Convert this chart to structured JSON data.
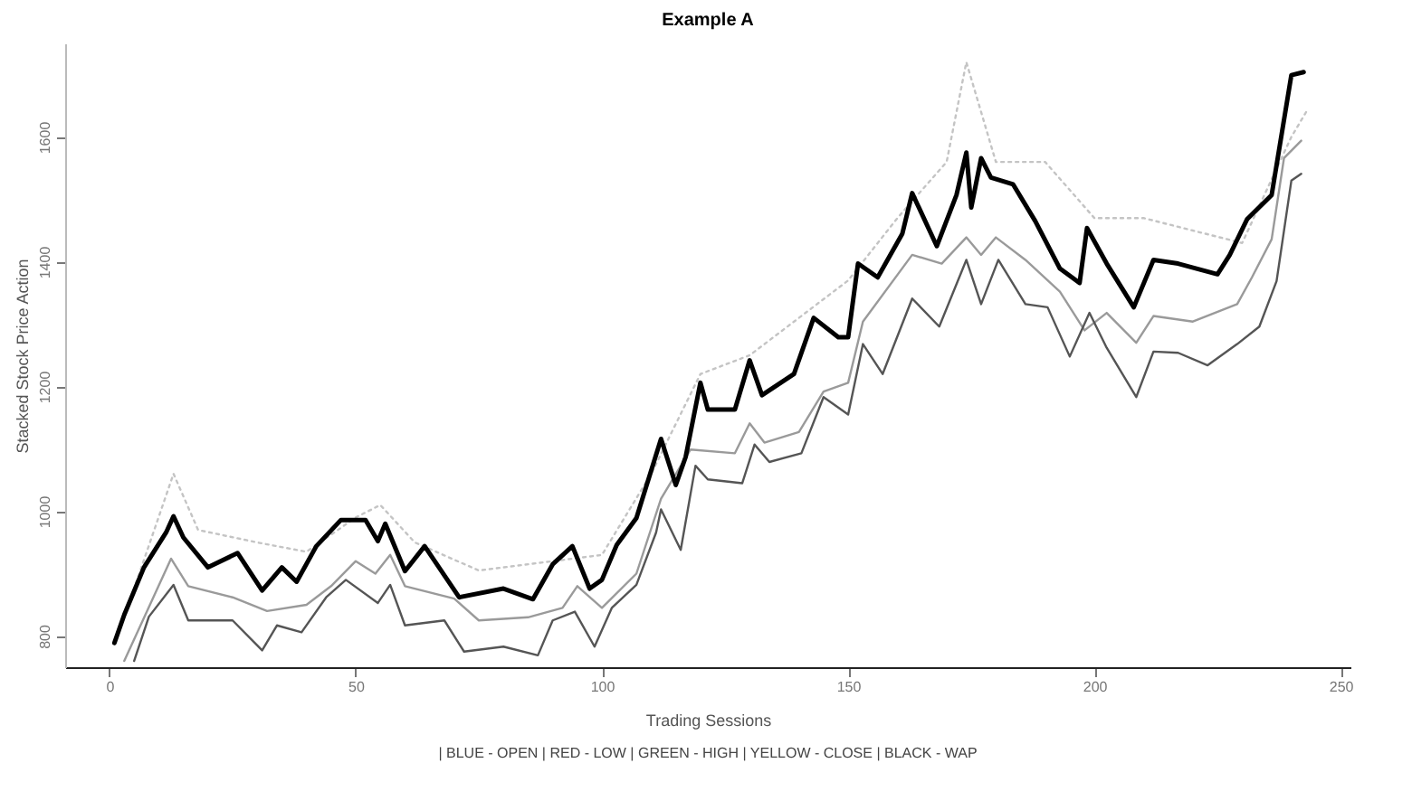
{
  "chart_data": {
    "type": "line",
    "title": "Example A",
    "xlabel": "Trading Sessions",
    "ylabel": "Stacked Stock Price Action",
    "annotations": [
      "| BLUE - OPEN | RED - LOW | GREEN - HIGH | YELLOW - CLOSE | BLACK - WAP"
    ],
    "xlim": [
      -9,
      252
    ],
    "ylim": [
      750,
      1750
    ],
    "xticks": [
      0,
      50,
      100,
      150,
      200,
      250
    ],
    "yticks": [
      800,
      1000,
      1200,
      1400,
      1600
    ],
    "grid": false,
    "series": [
      {
        "color": "#c4c4c4",
        "line_style": "dotted",
        "x": [
          3,
          13,
          18,
          30,
          40,
          50,
          55,
          62,
          75,
          90,
          100,
          110,
          120,
          130,
          140,
          150,
          160,
          170,
          174,
          180,
          190,
          200,
          210,
          220,
          230,
          240,
          243
        ],
        "values": [
          830,
          1060,
          970,
          950,
          935,
          990,
          1010,
          950,
          905,
          920,
          930,
          1060,
          1220,
          1250,
          1310,
          1370,
          1470,
          1560,
          1720,
          1560,
          1560,
          1470,
          1470,
          1450,
          1430,
          1600,
          1640
        ]
      },
      {
        "color": "#9a9a9a",
        "line_style": "solid",
        "x": [
          3,
          12.5,
          16,
          25,
          32,
          40,
          45,
          50,
          54,
          57,
          60,
          70,
          75,
          85,
          92,
          95,
          100,
          107,
          112,
          118,
          127,
          130,
          133,
          140,
          145,
          150,
          153,
          163,
          169,
          174,
          177,
          180,
          186,
          193,
          198,
          202.5,
          208.5,
          212,
          220,
          229,
          232,
          236,
          238.5,
          242
        ],
        "values": [
          760,
          924,
          880,
          862,
          840,
          850,
          880,
          920,
          900,
          930,
          880,
          860,
          825,
          830,
          845,
          880,
          845,
          900,
          1020,
          1099,
          1093,
          1141,
          1110,
          1127,
          1192,
          1206,
          1304,
          1411,
          1397,
          1439,
          1411,
          1439,
          1403,
          1352,
          1290,
          1318,
          1270,
          1313,
          1304,
          1332,
          1375,
          1436,
          1566,
          1594
        ]
      },
      {
        "color": "#555555",
        "line_style": "solid",
        "x": [
          5,
          8,
          13,
          16,
          25,
          31,
          34,
          39,
          44,
          48,
          54.5,
          57,
          60,
          68,
          72,
          80,
          87,
          90,
          94.5,
          98.5,
          102,
          107,
          111,
          112,
          116,
          119,
          121.5,
          128.5,
          131,
          134,
          140.5,
          145,
          150,
          153,
          157,
          163,
          168.5,
          174,
          177,
          180.5,
          186,
          190.5,
          195,
          199,
          202.5,
          208.5,
          212,
          217,
          223,
          229,
          233.5,
          237,
          240,
          242
        ],
        "values": [
          760,
          831,
          882,
          825,
          825,
          777,
          817,
          806,
          862,
          890,
          853,
          882,
          817,
          825,
          775,
          783,
          769,
          825,
          839,
          783,
          845,
          882,
          966,
          1003,
          938,
          1073,
          1051,
          1045,
          1107,
          1079,
          1093,
          1183,
          1155,
          1268,
          1220,
          1341,
          1296,
          1403,
          1332,
          1403,
          1332,
          1327,
          1248,
          1318,
          1262,
          1183,
          1256,
          1254,
          1234,
          1268,
          1296,
          1369,
          1530,
          1541
        ]
      },
      {
        "color": "#000000",
        "line_style": "solid",
        "x": [
          1,
          3,
          7,
          11.5,
          13,
          15,
          20,
          26,
          31,
          35,
          38,
          42,
          47,
          52,
          54.5,
          56,
          60,
          64,
          71,
          80,
          86,
          90,
          94,
          97.5,
          100,
          103,
          107,
          112,
          115,
          117,
          120,
          121.5,
          127,
          130,
          132.5,
          139,
          143,
          148,
          150,
          152,
          156,
          161,
          163,
          168,
          172,
          174,
          175,
          177,
          179,
          183.5,
          188,
          193,
          197,
          198.5,
          202.5,
          208,
          212,
          217,
          225,
          227.5,
          231,
          236,
          240,
          242.5
        ],
        "values": [
          789,
          834,
          910,
          966,
          992,
          958,
          910,
          933,
          873,
          910,
          887,
          944,
          986,
          986,
          952,
          980,
          904,
          944,
          862,
          876,
          859,
          915,
          944,
          876,
          890,
          946,
          989,
          1116,
          1042,
          1087,
          1206,
          1163,
          1163,
          1242,
          1186,
          1220,
          1310,
          1279,
          1279,
          1397,
          1375,
          1445,
          1510,
          1425,
          1507,
          1575,
          1487,
          1566,
          1535,
          1524,
          1465,
          1389,
          1366,
          1454,
          1397,
          1327,
          1403,
          1397,
          1380,
          1411,
          1468,
          1507,
          1699,
          1704
        ]
      }
    ]
  }
}
